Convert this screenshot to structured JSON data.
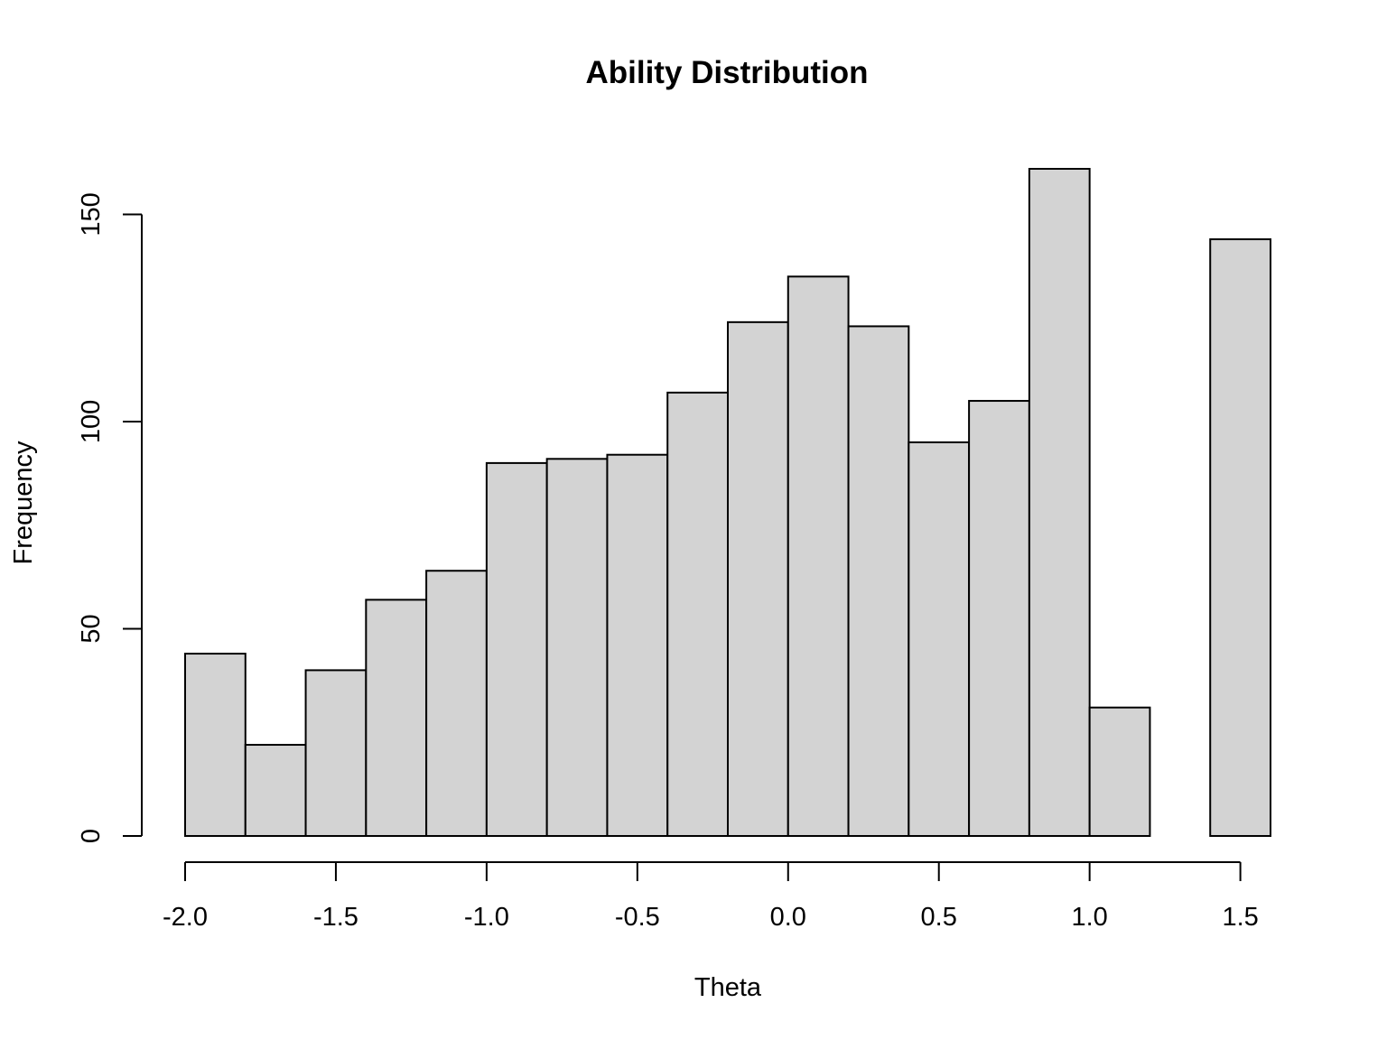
{
  "chart_data": {
    "type": "bar",
    "title": "Ability Distribution",
    "xlabel": "Theta",
    "ylabel": "Frequency",
    "bin_edges": [
      -2.0,
      -1.8,
      -1.6,
      -1.4,
      -1.2,
      -1.0,
      -0.8,
      -0.6,
      -0.4,
      -0.2,
      0.0,
      0.2,
      0.4,
      0.6,
      0.8,
      1.0,
      1.2,
      1.4,
      1.6
    ],
    "values": [
      44,
      22,
      40,
      57,
      64,
      90,
      91,
      92,
      107,
      124,
      135,
      123,
      95,
      105,
      161,
      31,
      0,
      144
    ],
    "bar_color": "#d3d3d3",
    "edge_color": "#000000",
    "xlim": [
      -2.0,
      1.6
    ],
    "ylim": [
      0,
      161
    ],
    "x_ticks": [
      -2.0,
      -1.5,
      -1.0,
      -0.5,
      0.0,
      0.5,
      1.0,
      1.5
    ],
    "x_tick_labels": [
      "-2.0",
      "-1.5",
      "-1.0",
      "-0.5",
      "0.0",
      "0.5",
      "1.0",
      "1.5"
    ],
    "y_ticks": [
      0,
      50,
      100,
      150
    ],
    "y_tick_labels": [
      "0",
      "50",
      "100",
      "150"
    ],
    "grid": false,
    "legend": "none"
  }
}
